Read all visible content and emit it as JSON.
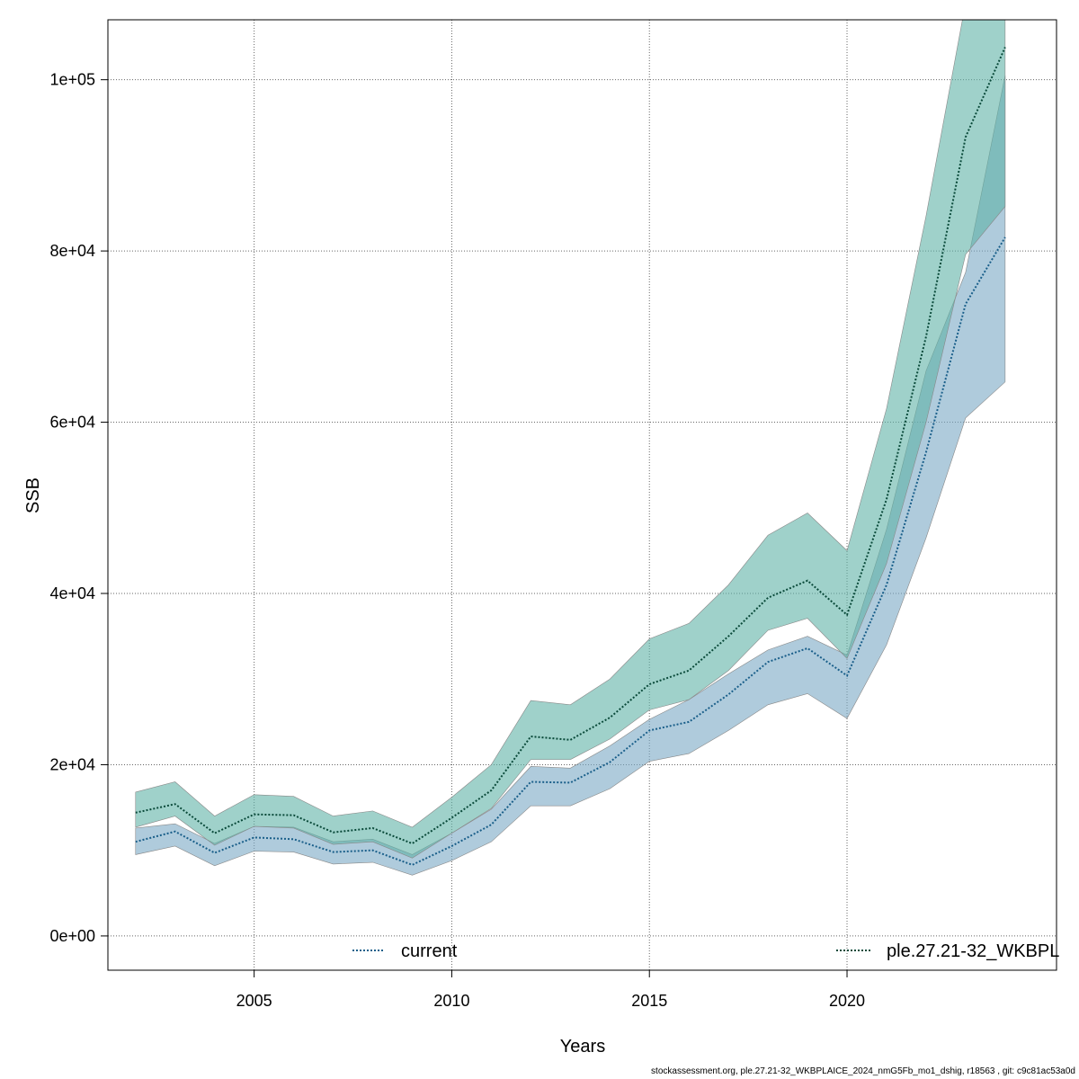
{
  "chart_data": {
    "type": "area",
    "xlabel": "Years",
    "ylabel": "SSB",
    "xlim": [
      2001.3,
      2025.3
    ],
    "ylim": [
      -4000,
      107000
    ],
    "x_ticks": [
      2005,
      2010,
      2015,
      2020
    ],
    "y_ticks": [
      0,
      20000,
      40000,
      60000,
      80000,
      100000
    ],
    "y_tick_labels": [
      "0e+00",
      "2e+04",
      "4e+04",
      "6e+04",
      "8e+04",
      "1e+05"
    ],
    "grid": true,
    "years": [
      2002,
      2003,
      2004,
      2005,
      2006,
      2007,
      2008,
      2009,
      2010,
      2011,
      2012,
      2013,
      2014,
      2015,
      2016,
      2017,
      2018,
      2019,
      2020,
      2021,
      2022,
      2023,
      2024
    ],
    "series": [
      {
        "name": "current",
        "color": "#1a5f8a",
        "band_color": "#7aa8c4",
        "mid": [
          11000,
          12200,
          9700,
          11500,
          11300,
          9800,
          10000,
          8300,
          10500,
          13000,
          18000,
          17900,
          20300,
          24000,
          25000,
          28200,
          32000,
          33600,
          30400,
          41000,
          56500,
          73800,
          81600
        ],
        "lower": [
          9500,
          10500,
          8200,
          9900,
          9800,
          8400,
          8600,
          7100,
          8800,
          11000,
          15200,
          15200,
          17200,
          20400,
          21300,
          24000,
          27000,
          28300,
          25400,
          34000,
          46500,
          60500,
          64700
        ],
        "upper": [
          12600,
          13100,
          10800,
          12800,
          12700,
          11000,
          11300,
          9500,
          12000,
          14800,
          19800,
          19600,
          22200,
          25300,
          27600,
          30600,
          33400,
          35000,
          32800,
          47500,
          66000,
          77500,
          100500
        ]
      },
      {
        "name": "ple.27.21-32_WKBPL",
        "color": "#0a4a3a",
        "band_color": "#5fb3a6",
        "mid": [
          14400,
          15400,
          12000,
          14200,
          14100,
          12100,
          12600,
          10800,
          13800,
          17000,
          23300,
          22900,
          25500,
          29400,
          31000,
          35000,
          39500,
          41500,
          37500,
          51000,
          70000,
          93300,
          103800
        ],
        "lower": [
          12700,
          14000,
          10600,
          12800,
          12600,
          10700,
          11000,
          9100,
          12000,
          14900,
          20600,
          20600,
          23000,
          26400,
          27600,
          31000,
          35700,
          37100,
          32400,
          43500,
          60000,
          79600,
          85200
        ],
        "upper": [
          16800,
          18000,
          14000,
          16500,
          16300,
          14000,
          14600,
          12700,
          16200,
          20000,
          27500,
          27000,
          30000,
          34700,
          36500,
          41000,
          46800,
          49400,
          45000,
          61600,
          84100,
          109000,
          109000
        ]
      }
    ],
    "legend": [
      "current",
      "ple.27.21-32_WKBPL"
    ],
    "legend_placement": "bottom"
  },
  "footer": "stockassessment.org, ple.27.21-32_WKBPLAICE_2024_nmG5Fb_mo1_dshig, r18563 , git: c9c81ac53a0d"
}
